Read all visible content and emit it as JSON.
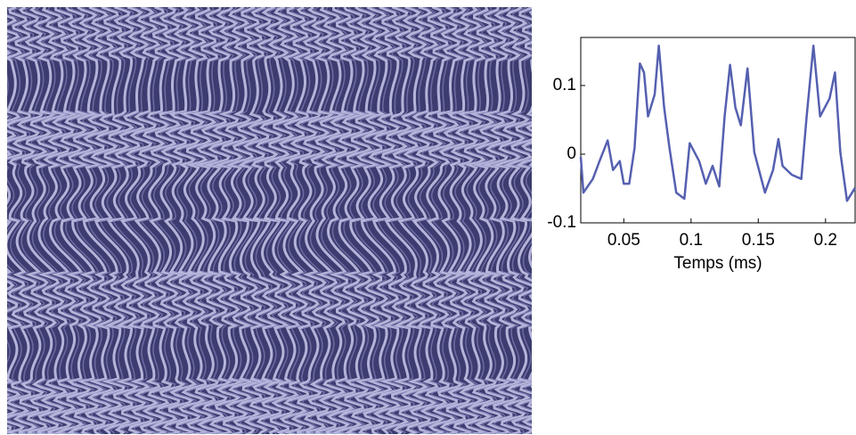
{
  "chart_data": {
    "type": "line",
    "xlabel": "Temps (ms)",
    "xlim": [
      0.018,
      0.222
    ],
    "ylim": [
      -0.1,
      0.17
    ],
    "xticks": [
      0.05,
      0.1,
      0.15,
      0.2
    ],
    "yticks": [
      -0.1,
      0,
      0.1
    ],
    "series": [
      {
        "color": "#5560b0",
        "x": [
          0.018,
          0.02,
          0.027,
          0.032,
          0.038,
          0.042,
          0.047,
          0.05,
          0.054,
          0.058,
          0.062,
          0.065,
          0.068,
          0.073,
          0.076,
          0.08,
          0.084,
          0.089,
          0.095,
          0.099,
          0.106,
          0.111,
          0.116,
          0.121,
          0.125,
          0.129,
          0.133,
          0.137,
          0.142,
          0.147,
          0.155,
          0.161,
          0.165,
          0.168,
          0.175,
          0.182,
          0.186,
          0.191,
          0.196,
          0.203,
          0.207,
          0.211,
          0.216,
          0.222
        ],
        "values": [
          -0.004,
          -0.056,
          -0.036,
          -0.01,
          0.02,
          -0.023,
          -0.01,
          -0.043,
          -0.043,
          0.009,
          0.132,
          0.119,
          0.055,
          0.087,
          0.158,
          0.068,
          0.009,
          -0.056,
          -0.065,
          0.016,
          -0.01,
          -0.043,
          -0.017,
          -0.047,
          0.055,
          0.13,
          0.068,
          0.042,
          0.125,
          0.003,
          -0.056,
          -0.023,
          0.022,
          -0.017,
          -0.03,
          -0.036,
          0.055,
          0.158,
          0.055,
          0.081,
          0.119,
          0.003,
          -0.068,
          -0.049
        ]
      }
    ]
  }
}
